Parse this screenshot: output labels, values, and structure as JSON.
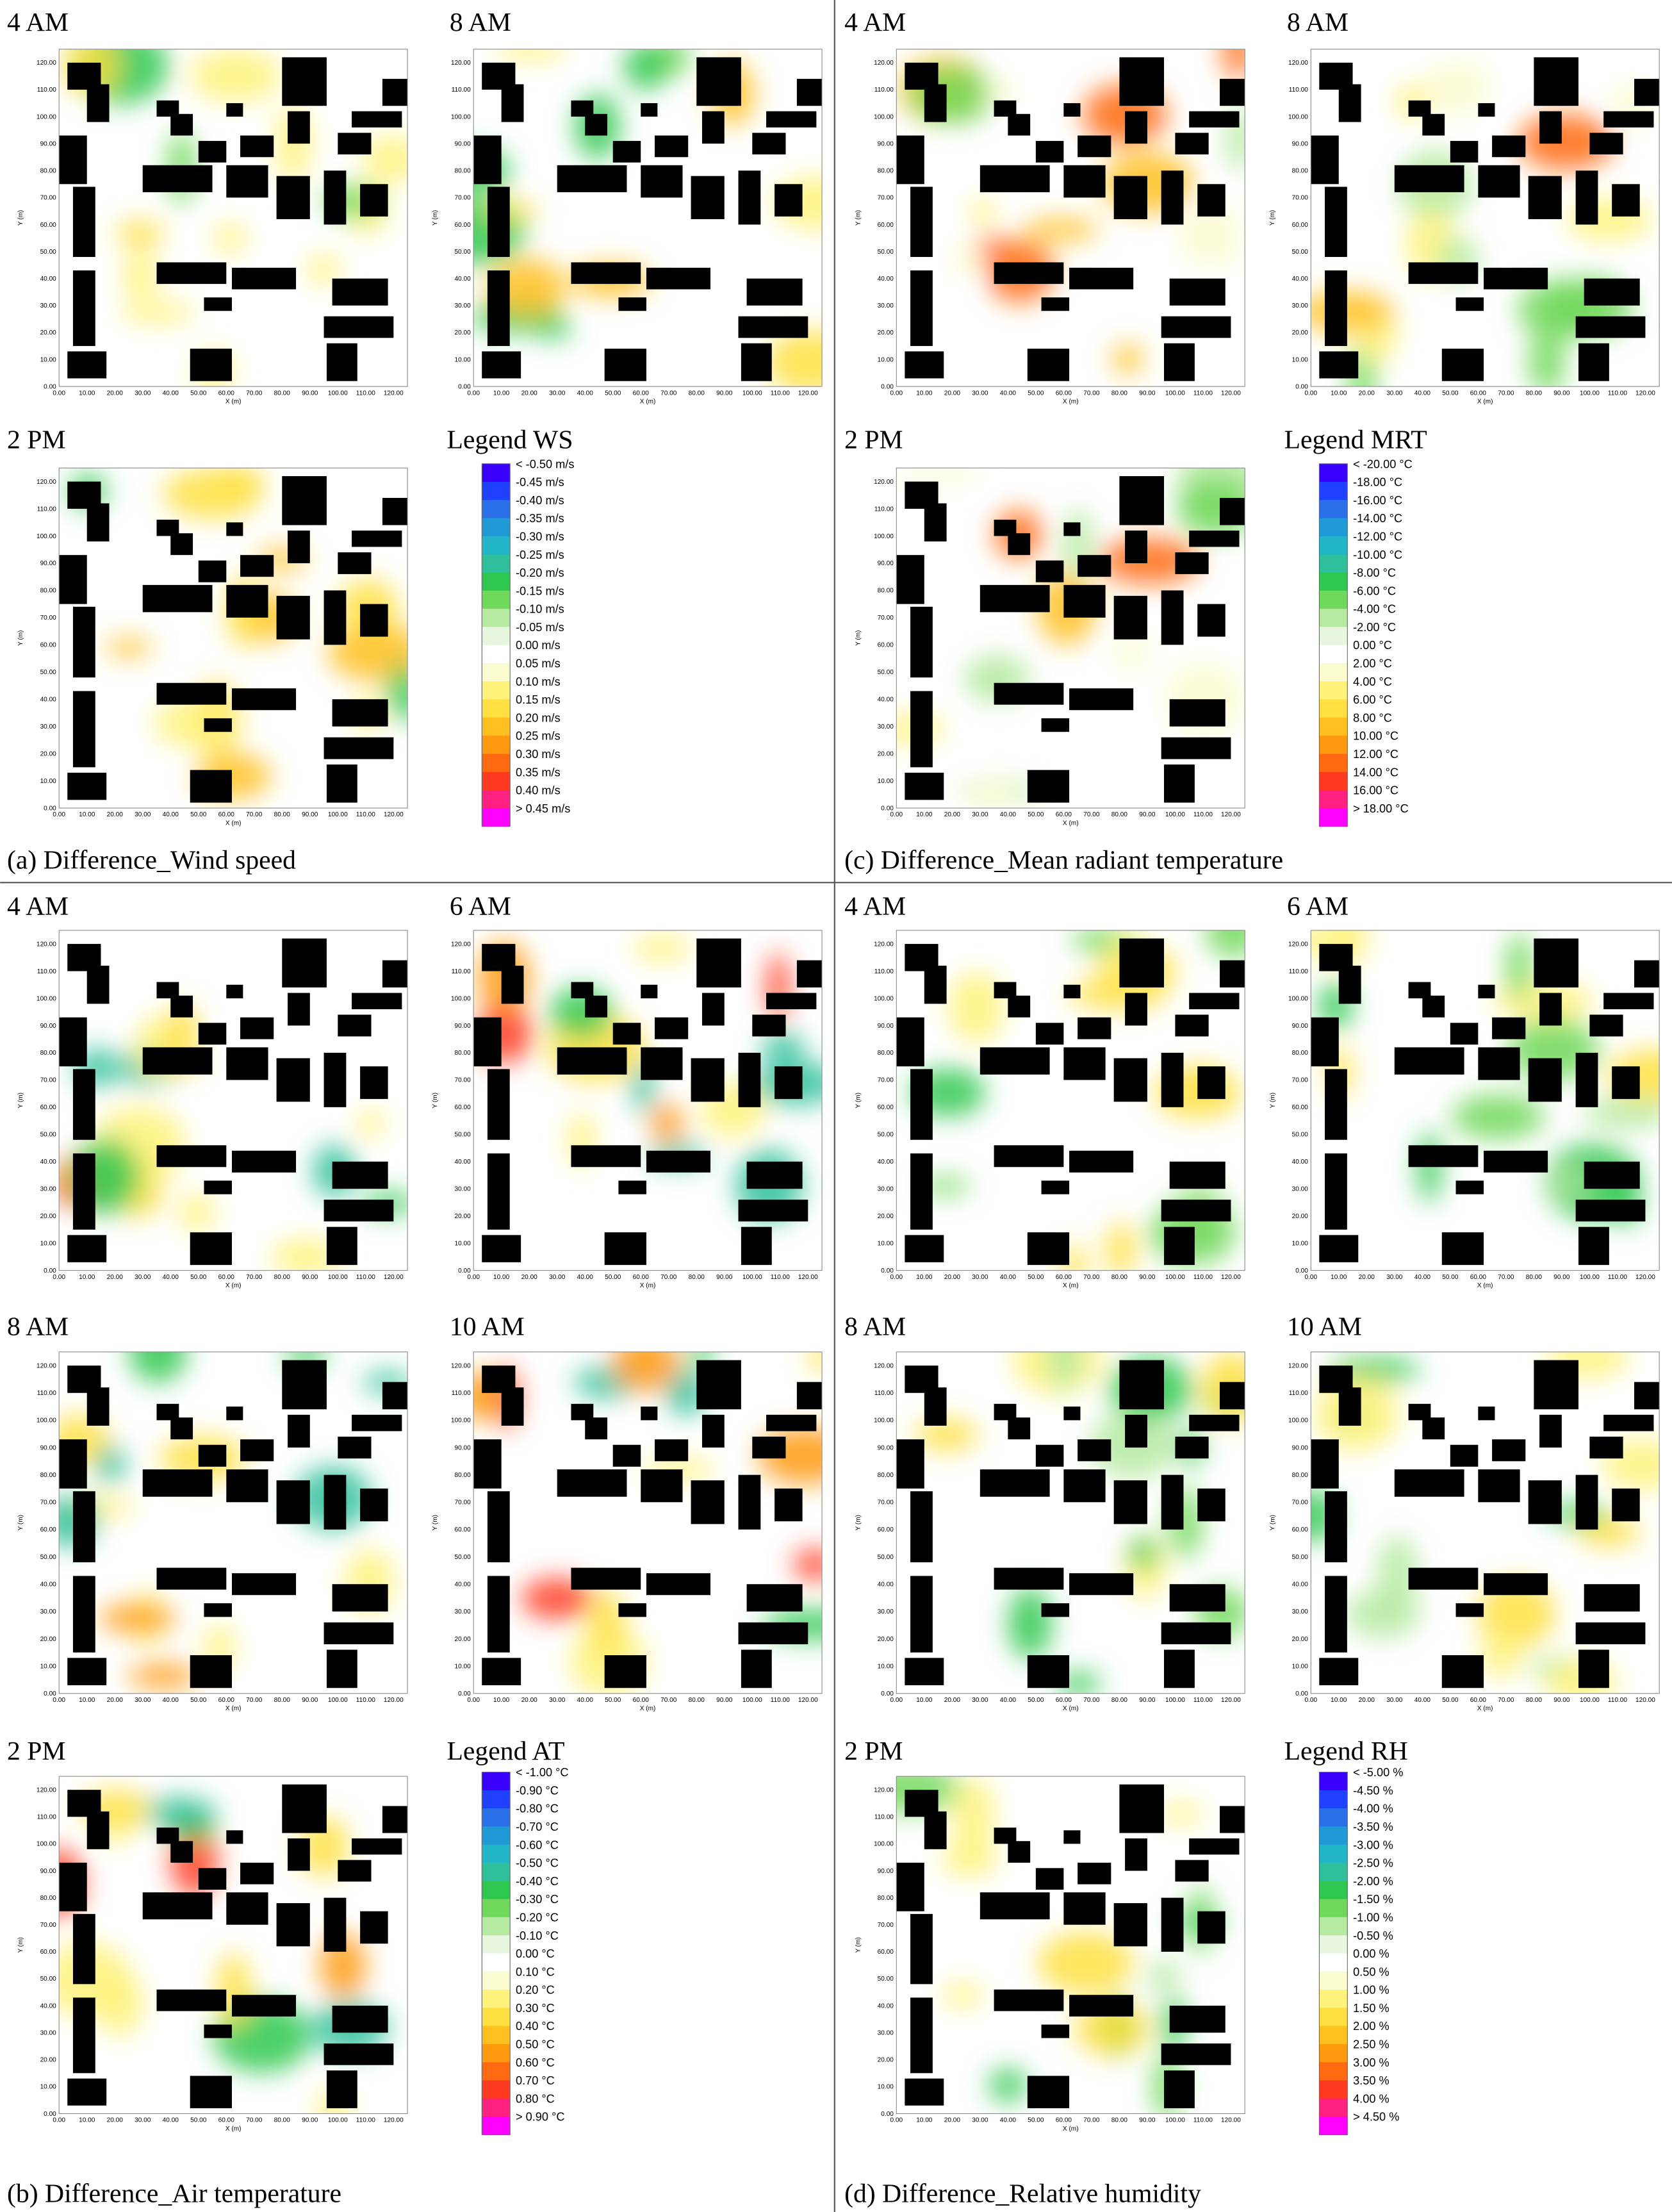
{
  "axes": {
    "ticks": [
      "0.00",
      "10.00",
      "20.00",
      "30.00",
      "40.00",
      "50.00",
      "60.00",
      "70.00",
      "80.00",
      "90.00",
      "100.00",
      "110.00",
      "120.00"
    ],
    "x_label": "X (m)",
    "y_label": "Y (m)"
  },
  "panels": [
    {
      "caption": "(a) Difference_Wind speed",
      "maps": [
        "4 AM",
        "8 AM",
        "2 PM"
      ],
      "legend": {
        "title": "Legend WS",
        "labels": [
          "< -0.50 m/s",
          "-0.45 m/s",
          "-0.40 m/s",
          "-0.35 m/s",
          "-0.30 m/s",
          "-0.25 m/s",
          "-0.20 m/s",
          "-0.15 m/s",
          "-0.10 m/s",
          "-0.05 m/s",
          "0.00 m/s",
          "0.05 m/s",
          "0.10 m/s",
          "0.15 m/s",
          "0.20 m/s",
          "0.25 m/s",
          "0.30 m/s",
          "0.35 m/s",
          "0.40 m/s",
          "> 0.45 m/s"
        ]
      }
    },
    {
      "caption": "(b) Difference_Air temperature",
      "maps": [
        "4 AM",
        "6 AM",
        "8 AM",
        "10 AM",
        "2 PM"
      ],
      "legend": {
        "title": "Legend AT",
        "labels": [
          "< -1.00 °C",
          "-0.90 °C",
          "-0.80 °C",
          "-0.70 °C",
          "-0.60 °C",
          "-0.50 °C",
          "-0.40 °C",
          "-0.30 °C",
          "-0.20 °C",
          "-0.10 °C",
          "0.00 °C",
          "0.10 °C",
          "0.20 °C",
          "0.30 °C",
          "0.40 °C",
          "0.50 °C",
          "0.60 °C",
          "0.70 °C",
          "0.80 °C",
          "> 0.90 °C"
        ]
      }
    },
    {
      "caption": "(c) Difference_Mean radiant temperature",
      "maps": [
        "4 AM",
        "8 AM",
        "2 PM"
      ],
      "legend": {
        "title": "Legend MRT",
        "labels": [
          "< -20.00 °C",
          "-18.00 °C",
          "-16.00 °C",
          "-14.00 °C",
          "-12.00 °C",
          "-10.00 °C",
          "-8.00 °C",
          "-6.00 °C",
          "-4.00 °C",
          "-2.00 °C",
          "0.00 °C",
          "2.00 °C",
          "4.00 °C",
          "6.00 °C",
          "8.00 °C",
          "10.00 °C",
          "12.00 °C",
          "14.00 °C",
          "16.00 °C",
          "> 18.00 °C"
        ]
      }
    },
    {
      "caption": "(d) Difference_Relative humidity",
      "maps": [
        "4 AM",
        "6 AM",
        "8 AM",
        "10 AM",
        "2 PM"
      ],
      "legend": {
        "title": "Legend RH",
        "labels": [
          "< -5.00 %",
          "-4.50 %",
          "-4.00 %",
          "-3.50 %",
          "-3.00 %",
          "-2.50 %",
          "-2.00 %",
          "-1.50 %",
          "-1.00 %",
          "-0.50 %",
          "0.00 %",
          "0.50 %",
          "1.00 %",
          "1.50 %",
          "2.00 %",
          "2.50 %",
          "3.00 %",
          "3.50 %",
          "4.00 %",
          "> 4.50 %"
        ]
      }
    }
  ]
}
